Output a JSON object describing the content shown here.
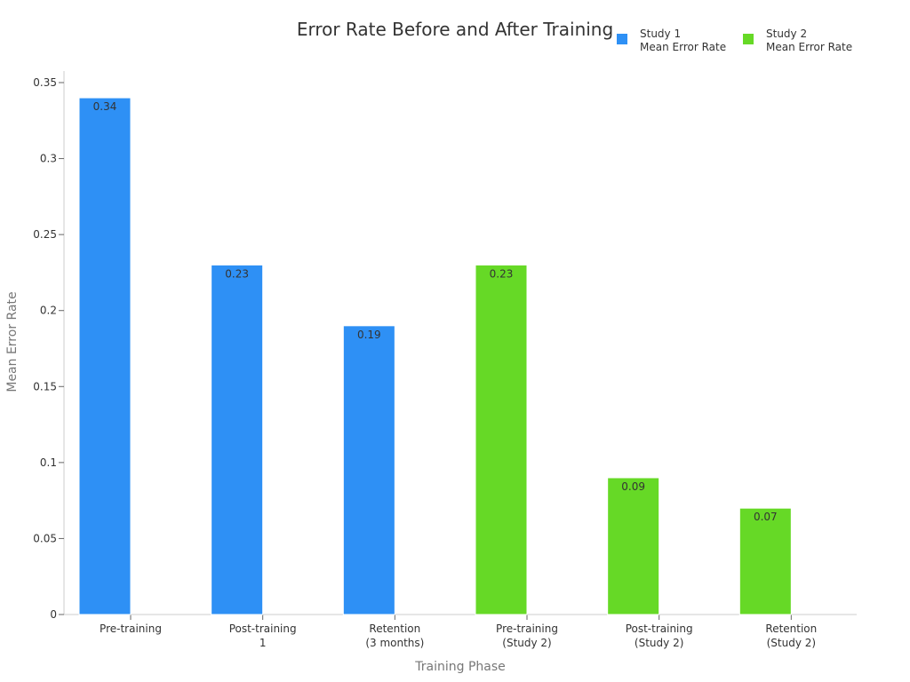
{
  "chart_data": {
    "type": "bar",
    "title": "Error Rate Before and After Training",
    "xlabel": "Training Phase",
    "ylabel": "Mean Error Rate",
    "ylim": [
      0,
      0.35
    ],
    "yticks": [
      "0",
      "0.05",
      "0.1",
      "0.15",
      "0.2",
      "0.25",
      "0.3",
      "0.35"
    ],
    "grid": false,
    "legend_position": "top-right",
    "categories": [
      [
        "Pre-training"
      ],
      [
        "Post-training",
        "1"
      ],
      [
        "Retention",
        "(3 months)"
      ],
      [
        "Pre-training",
        "(Study 2)"
      ],
      [
        "Post-training",
        "(Study 2)"
      ],
      [
        "Retention",
        "(Study 2)"
      ]
    ],
    "series": [
      {
        "name": [
          "Study 1",
          "Mean Error Rate"
        ],
        "color": "#2e90f5",
        "values": [
          0.34,
          0.23,
          0.19,
          null,
          null,
          null
        ]
      },
      {
        "name": [
          "Study 2",
          "Mean Error Rate"
        ],
        "color": "#66d926",
        "values": [
          null,
          null,
          null,
          0.23,
          0.09,
          0.07
        ]
      }
    ],
    "data_labels": [
      [
        "0.34",
        "0.23",
        "0.19",
        null,
        null,
        null
      ],
      [
        null,
        null,
        null,
        "0.23",
        "0.09",
        "0.07"
      ]
    ]
  }
}
